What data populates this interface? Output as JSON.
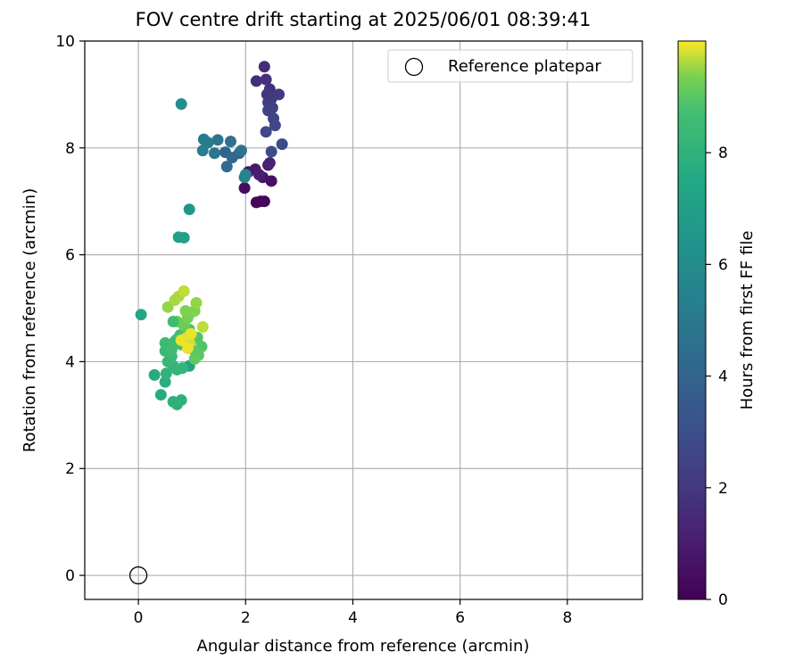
{
  "chart_data": {
    "type": "scatter",
    "title": "FOV centre drift starting at 2025/06/01 08:39:41",
    "xlabel": "Angular distance from reference (arcmin)",
    "ylabel": "Rotation from reference (arcmin)",
    "xlim": [
      -1,
      9.4
    ],
    "ylim": [
      -0.45,
      10
    ],
    "xticks": [
      0,
      2,
      4,
      6,
      8
    ],
    "yticks": [
      0,
      2,
      4,
      6,
      8,
      10
    ],
    "grid": true,
    "legend": {
      "placement": "top-right",
      "entries": [
        "Reference platepar"
      ]
    },
    "reference": {
      "x": 0,
      "y": 0,
      "label": "Reference platepar"
    },
    "colorbar": {
      "label": "Hours from first FF file",
      "colormap": "viridis",
      "range": [
        0,
        10
      ],
      "ticks": [
        0,
        2,
        4,
        6,
        8
      ]
    },
    "points": [
      {
        "x": 2.35,
        "y": 7.0,
        "c": 0.1
      },
      {
        "x": 2.2,
        "y": 6.98,
        "c": 0.2
      },
      {
        "x": 2.28,
        "y": 7.0,
        "c": 0.3
      },
      {
        "x": 1.98,
        "y": 7.25,
        "c": 0.4
      },
      {
        "x": 2.48,
        "y": 7.38,
        "c": 0.5
      },
      {
        "x": 2.32,
        "y": 7.45,
        "c": 0.7
      },
      {
        "x": 2.05,
        "y": 7.55,
        "c": 0.8
      },
      {
        "x": 2.18,
        "y": 7.6,
        "c": 0.9
      },
      {
        "x": 2.42,
        "y": 7.68,
        "c": 1.0
      },
      {
        "x": 2.25,
        "y": 7.5,
        "c": 1.1
      },
      {
        "x": 2.45,
        "y": 7.72,
        "c": 1.2
      },
      {
        "x": 2.35,
        "y": 9.52,
        "c": 1.5
      },
      {
        "x": 2.2,
        "y": 9.25,
        "c": 1.6
      },
      {
        "x": 2.38,
        "y": 9.28,
        "c": 1.7
      },
      {
        "x": 2.45,
        "y": 9.1,
        "c": 1.8
      },
      {
        "x": 2.4,
        "y": 9.0,
        "c": 1.9
      },
      {
        "x": 2.48,
        "y": 8.92,
        "c": 2.0
      },
      {
        "x": 2.62,
        "y": 9.0,
        "c": 2.1
      },
      {
        "x": 2.42,
        "y": 8.85,
        "c": 2.2
      },
      {
        "x": 2.5,
        "y": 8.75,
        "c": 2.3
      },
      {
        "x": 2.42,
        "y": 8.7,
        "c": 2.4
      },
      {
        "x": 2.52,
        "y": 8.55,
        "c": 2.5
      },
      {
        "x": 2.55,
        "y": 8.42,
        "c": 2.6
      },
      {
        "x": 2.38,
        "y": 8.3,
        "c": 2.7
      },
      {
        "x": 2.68,
        "y": 8.07,
        "c": 2.8
      },
      {
        "x": 2.48,
        "y": 7.93,
        "c": 2.9
      },
      {
        "x": 1.88,
        "y": 7.9,
        "c": 3.8
      },
      {
        "x": 1.62,
        "y": 7.92,
        "c": 4.0
      },
      {
        "x": 1.75,
        "y": 7.82,
        "c": 4.2
      },
      {
        "x": 1.65,
        "y": 7.65,
        "c": 4.4
      },
      {
        "x": 1.72,
        "y": 8.12,
        "c": 4.6
      },
      {
        "x": 1.92,
        "y": 7.95,
        "c": 4.8
      },
      {
        "x": 1.48,
        "y": 8.15,
        "c": 4.9
      },
      {
        "x": 1.42,
        "y": 7.9,
        "c": 5.0
      },
      {
        "x": 1.22,
        "y": 8.16,
        "c": 5.1
      },
      {
        "x": 1.3,
        "y": 8.1,
        "c": 5.2
      },
      {
        "x": 1.2,
        "y": 7.95,
        "c": 5.3
      },
      {
        "x": 1.98,
        "y": 7.45,
        "c": 5.5
      },
      {
        "x": 2.0,
        "y": 7.5,
        "c": 5.6
      },
      {
        "x": 0.8,
        "y": 8.82,
        "c": 6.0
      },
      {
        "x": 0.95,
        "y": 6.85,
        "c": 6.6
      },
      {
        "x": 0.75,
        "y": 6.33,
        "c": 7.0
      },
      {
        "x": 0.85,
        "y": 6.32,
        "c": 7.1
      },
      {
        "x": 0.05,
        "y": 4.88,
        "c": 7.4
      },
      {
        "x": 0.95,
        "y": 3.92,
        "c": 7.2
      },
      {
        "x": 0.3,
        "y": 3.75,
        "c": 7.6
      },
      {
        "x": 0.42,
        "y": 3.38,
        "c": 7.7
      },
      {
        "x": 0.5,
        "y": 3.62,
        "c": 7.8
      },
      {
        "x": 0.72,
        "y": 3.2,
        "c": 7.9
      },
      {
        "x": 0.65,
        "y": 3.25,
        "c": 8.0
      },
      {
        "x": 0.8,
        "y": 3.28,
        "c": 8.0
      },
      {
        "x": 0.52,
        "y": 3.78,
        "c": 8.1
      },
      {
        "x": 0.72,
        "y": 3.85,
        "c": 8.1
      },
      {
        "x": 0.82,
        "y": 3.88,
        "c": 8.2
      },
      {
        "x": 0.65,
        "y": 3.92,
        "c": 8.2
      },
      {
        "x": 0.55,
        "y": 4.0,
        "c": 8.3
      },
      {
        "x": 0.62,
        "y": 4.1,
        "c": 8.3
      },
      {
        "x": 0.5,
        "y": 4.2,
        "c": 8.4
      },
      {
        "x": 0.58,
        "y": 4.28,
        "c": 8.4
      },
      {
        "x": 0.5,
        "y": 4.35,
        "c": 8.5
      },
      {
        "x": 0.68,
        "y": 4.38,
        "c": 8.5
      },
      {
        "x": 0.72,
        "y": 4.42,
        "c": 8.5
      },
      {
        "x": 0.62,
        "y": 4.22,
        "c": 8.6
      },
      {
        "x": 0.8,
        "y": 4.32,
        "c": 8.6
      },
      {
        "x": 0.9,
        "y": 4.3,
        "c": 8.7
      },
      {
        "x": 0.78,
        "y": 4.5,
        "c": 8.7
      },
      {
        "x": 0.88,
        "y": 4.55,
        "c": 8.8
      },
      {
        "x": 0.95,
        "y": 4.6,
        "c": 8.8
      },
      {
        "x": 1.1,
        "y": 4.45,
        "c": 8.9
      },
      {
        "x": 1.18,
        "y": 4.28,
        "c": 8.9
      },
      {
        "x": 1.05,
        "y": 4.2,
        "c": 9.0
      },
      {
        "x": 1.12,
        "y": 4.12,
        "c": 9.0
      },
      {
        "x": 1.05,
        "y": 4.05,
        "c": 9.1
      },
      {
        "x": 0.98,
        "y": 4.38,
        "c": 9.1
      },
      {
        "x": 0.85,
        "y": 4.68,
        "c": 9.2
      },
      {
        "x": 0.72,
        "y": 4.75,
        "c": 9.2
      },
      {
        "x": 0.65,
        "y": 4.75,
        "c": 8.6
      },
      {
        "x": 0.92,
        "y": 4.82,
        "c": 9.3
      },
      {
        "x": 0.98,
        "y": 4.92,
        "c": 9.3
      },
      {
        "x": 0.88,
        "y": 4.95,
        "c": 9.4
      },
      {
        "x": 1.05,
        "y": 4.95,
        "c": 9.4
      },
      {
        "x": 1.08,
        "y": 5.1,
        "c": 9.5
      },
      {
        "x": 0.55,
        "y": 5.02,
        "c": 9.5
      },
      {
        "x": 0.68,
        "y": 5.15,
        "c": 9.6
      },
      {
        "x": 0.75,
        "y": 5.22,
        "c": 9.6
      },
      {
        "x": 0.85,
        "y": 5.32,
        "c": 9.7
      },
      {
        "x": 1.2,
        "y": 4.65,
        "c": 9.7
      },
      {
        "x": 0.95,
        "y": 4.35,
        "c": 9.8
      },
      {
        "x": 0.9,
        "y": 4.45,
        "c": 9.8
      },
      {
        "x": 0.98,
        "y": 4.52,
        "c": 9.9
      },
      {
        "x": 0.8,
        "y": 4.4,
        "c": 9.9
      },
      {
        "x": 0.92,
        "y": 4.25,
        "c": 9.9
      }
    ]
  }
}
